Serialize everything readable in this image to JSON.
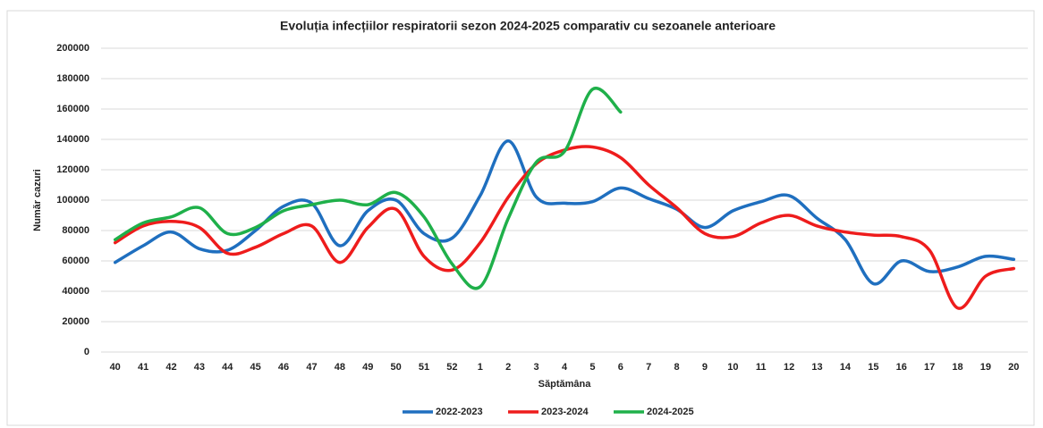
{
  "chart_data": {
    "type": "line",
    "title": "Evoluția infecțiilor respiratorii sezon 2024-2025 comparativ cu sezoanele anterioare",
    "x_label": "Săptămâna",
    "y_label": "Număr cazuri",
    "categories": [
      "40",
      "41",
      "42",
      "43",
      "44",
      "45",
      "46",
      "47",
      "48",
      "49",
      "50",
      "51",
      "52",
      "1",
      "2",
      "3",
      "4",
      "5",
      "6",
      "7",
      "8",
      "9",
      "10",
      "11",
      "12",
      "13",
      "14",
      "15",
      "16",
      "17",
      "18",
      "19",
      "20"
    ],
    "series": [
      {
        "name": "2022-2023",
        "color": "#1f6fbf",
        "values": [
          59000,
          70000,
          79000,
          68000,
          67000,
          80000,
          96000,
          98000,
          70000,
          93000,
          100000,
          78000,
          75000,
          103000,
          139000,
          102000,
          98000,
          99000,
          108000,
          101000,
          94000,
          82000,
          93000,
          99000,
          103000,
          88000,
          74000,
          45000,
          60000,
          53000,
          56000,
          63000,
          61000
        ]
      },
      {
        "name": "2023-2024",
        "color": "#ee1c1c",
        "values": [
          72000,
          83000,
          86000,
          82000,
          65000,
          69000,
          78000,
          83000,
          59000,
          82000,
          94000,
          63000,
          54000,
          72000,
          102000,
          124000,
          133000,
          135000,
          128000,
          110000,
          95000,
          78000,
          76000,
          85000,
          90000,
          83000,
          79000,
          77000,
          76000,
          67000,
          29000,
          50000,
          55000
        ]
      },
      {
        "name": "2024-2025",
        "color": "#1fb04a",
        "values": [
          74000,
          85000,
          89000,
          95000,
          78000,
          82000,
          93000,
          97000,
          100000,
          97000,
          105000,
          89000,
          58000,
          43000,
          88000,
          125000,
          132000,
          173000,
          158000,
          null,
          null,
          null,
          null,
          null,
          null,
          null,
          null,
          null,
          null,
          null,
          null,
          null,
          null
        ]
      }
    ],
    "ylim": [
      0,
      200000
    ],
    "yticks": [
      0,
      20000,
      40000,
      60000,
      80000,
      100000,
      120000,
      140000,
      160000,
      180000,
      200000
    ],
    "grid": true,
    "legend": "bottom"
  }
}
